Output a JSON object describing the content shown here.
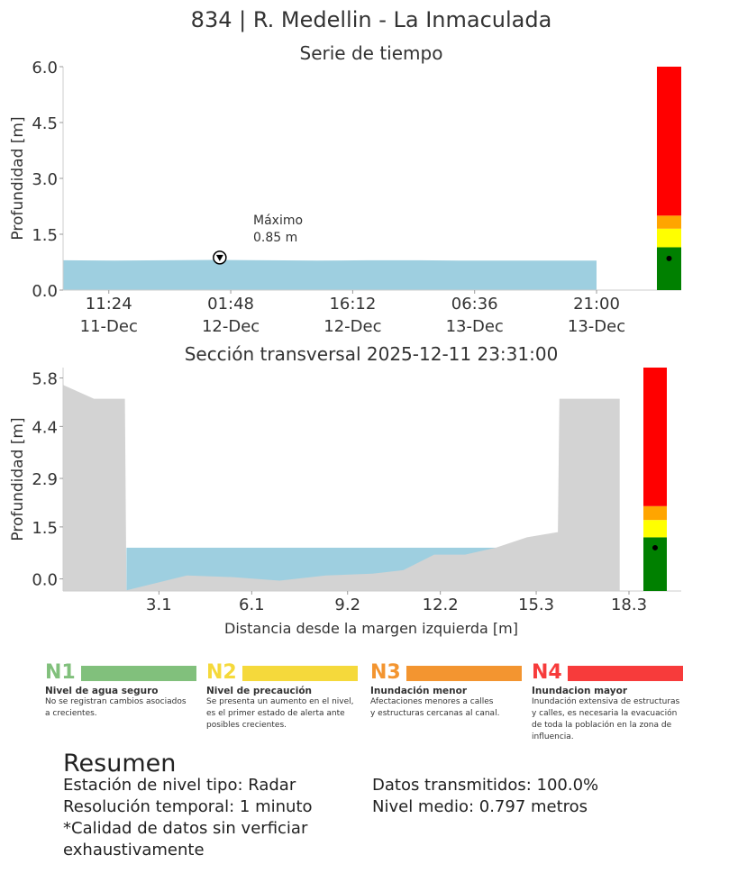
{
  "title": "834 | R. Medellin - La Inmaculada",
  "time_series": {
    "subtitle": "Serie de tiempo",
    "ylabel": "Profundidad [m]",
    "yticks": [
      "0.0",
      "1.5",
      "3.0",
      "4.5",
      "6.0"
    ],
    "xticks": [
      {
        "time": "11:24",
        "date": "11-Dec"
      },
      {
        "time": "01:48",
        "date": "12-Dec"
      },
      {
        "time": "16:12",
        "date": "12-Dec"
      },
      {
        "time": "06:36",
        "date": "13-Dec"
      },
      {
        "time": "21:00",
        "date": "13-Dec"
      }
    ],
    "max_label": "Máximo",
    "max_value": "0.85 m"
  },
  "cross_section": {
    "subtitle": "Sección transversal 2025-12-11 23:31:00",
    "ylabel": "Profundidad [m]",
    "xlabel": "Distancia desde la margen izquierda [m]",
    "yticks": [
      "0.0",
      "1.5",
      "2.9",
      "4.4",
      "5.8"
    ],
    "xticks": [
      "3.1",
      "6.1",
      "9.2",
      "12.2",
      "15.3",
      "18.3"
    ]
  },
  "chart_data": [
    {
      "type": "area",
      "title": "Serie de tiempo",
      "ylabel": "Profundidad [m]",
      "ylim": [
        0,
        6.0
      ],
      "x_ticks": [
        "11:24 11-Dec",
        "01:48 12-Dec",
        "16:12 12-Dec",
        "06:36 13-Dec",
        "21:00 13-Dec"
      ],
      "x": [
        "2025-12-11 06:00",
        "2025-12-11 12:00",
        "2025-12-11 18:00",
        "2025-12-12 00:00",
        "2025-12-12 06:00",
        "2025-12-12 12:00",
        "2025-12-12 18:00",
        "2025-12-13 00:00",
        "2025-12-13 06:00",
        "2025-12-13 12:00",
        "2025-12-13 18:00",
        "2025-12-13 21:00"
      ],
      "y": [
        0.8,
        0.79,
        0.8,
        0.81,
        0.8,
        0.79,
        0.8,
        0.8,
        0.79,
        0.79,
        0.79,
        0.79
      ],
      "color": "#9ecfe0",
      "annotation": {
        "text": "Máximo 0.85 m",
        "x": "2025-12-12 00:30",
        "y": 0.85
      },
      "alert_bar": {
        "levels": [
          {
            "from": 0,
            "to": 1.15,
            "color": "#008000"
          },
          {
            "from": 1.15,
            "to": 1.65,
            "color": "#ffff00"
          },
          {
            "from": 1.65,
            "to": 2.0,
            "color": "#ffa500"
          },
          {
            "from": 2.0,
            "to": 6.0,
            "color": "#ff0000"
          }
        ],
        "current": 0.85
      }
    },
    {
      "type": "area",
      "title": "Sección transversal 2025-12-11 23:31:00",
      "xlabel": "Distancia desde la margen izquierda [m]",
      "ylabel": "Profundidad [m]",
      "xlim": [
        0,
        18.3
      ],
      "ylim": [
        -0.35,
        6.1
      ],
      "x_ticks": [
        3.1,
        6.1,
        9.2,
        12.2,
        15.3,
        18.3
      ],
      "y_ticks": [
        0.0,
        1.5,
        2.9,
        4.4,
        5.8
      ],
      "water_level": 0.9,
      "water_color": "#9ecfe0",
      "ground_color": "#d3d3d3",
      "bed_profile": {
        "x": [
          0,
          1.0,
          2.0,
          2.05,
          4.0,
          5.5,
          7.0,
          8.5,
          10.0,
          11.0,
          12.0,
          13.0,
          14.0,
          15.0,
          16.0,
          16.05,
          18.0,
          18.0
        ],
        "y": [
          5.6,
          5.2,
          5.2,
          -0.33,
          0.1,
          0.05,
          -0.05,
          0.1,
          0.15,
          0.25,
          0.7,
          0.7,
          0.9,
          1.2,
          1.35,
          5.2,
          5.2,
          5.45
        ]
      },
      "alert_bar": {
        "levels": [
          {
            "from": -0.35,
            "to": 1.2,
            "color": "#008000"
          },
          {
            "from": 1.2,
            "to": 1.7,
            "color": "#ffff00"
          },
          {
            "from": 1.7,
            "to": 2.1,
            "color": "#ffa500"
          },
          {
            "from": 2.1,
            "to": 6.1,
            "color": "#ff0000"
          }
        ],
        "current": 0.9
      }
    }
  ],
  "legend": [
    {
      "code": "N1",
      "color": "#81c07c",
      "title": "Nivel de agua seguro",
      "desc": [
        "No se registran cambios asociados",
        "a crecientes."
      ]
    },
    {
      "code": "N2",
      "color": "#f5d93b",
      "title": "Nivel de precaución",
      "desc": [
        "Se presenta un aumento en el nivel,",
        "es el primer estado de alerta ante",
        "posibles crecientes."
      ]
    },
    {
      "code": "N3",
      "color": "#f39530",
      "title": "Inundación menor",
      "desc": [
        "Afectaciones menores a calles",
        "y estructuras cercanas al canal."
      ]
    },
    {
      "code": "N4",
      "color": "#f73b3b",
      "title": "Inundacion mayor",
      "desc": [
        "Inundación extensiva de estructuras",
        "y calles, es necesaria la evacuación",
        "de toda la población en la zona de",
        "influencia."
      ]
    }
  ],
  "summary": {
    "title": "Resumen",
    "left": [
      "Estación de nivel tipo: Radar",
      "Resolución temporal: 1 minuto",
      "*Calidad de datos sin verficiar",
      "exhaustivamente"
    ],
    "right": [
      "Datos transmitidos: 100.0%",
      "Nivel medio: 0.797 metros"
    ]
  }
}
